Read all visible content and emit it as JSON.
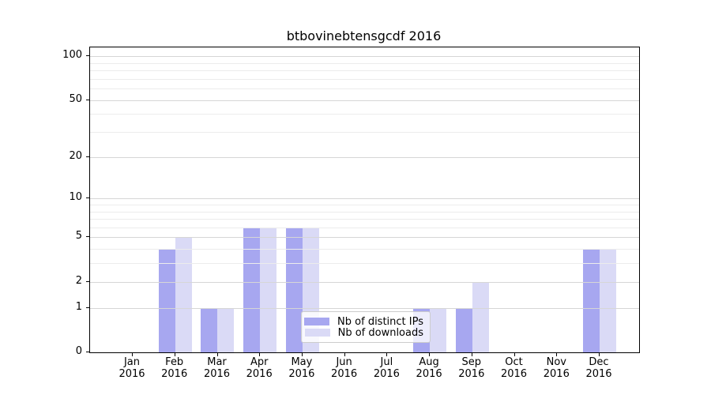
{
  "title": "btbovinebtensgcdf 2016",
  "colors": {
    "background": "#ffffff",
    "axis": "#000000",
    "major_grid": "#d6d6d6",
    "minor_grid": "#ececec",
    "legend_border": "#cccccc",
    "series_distinct_ips": "#a7a7f0",
    "series_downloads": "#dadaf6"
  },
  "legend": {
    "items": [
      {
        "label": "Nb of distinct IPs",
        "color": "#a7a7f0"
      },
      {
        "label": "Nb of downloads",
        "color": "#dadaf6"
      }
    ]
  },
  "chart_data": {
    "type": "bar",
    "title": "btbovinebtensgcdf 2016",
    "y_scale": "log1p",
    "grid": "on",
    "legend_position": "lower-center-inside",
    "categories": [
      "Jan",
      "Feb",
      "Mar",
      "Apr",
      "May",
      "Jun",
      "Jul",
      "Aug",
      "Sep",
      "Oct",
      "Nov",
      "Dec"
    ],
    "category_year": "2016",
    "series": [
      {
        "name": "Nb of distinct IPs",
        "color": "#a7a7f0",
        "values": [
          0,
          4,
          1,
          6,
          6,
          0,
          0,
          1,
          1,
          0,
          0,
          4
        ]
      },
      {
        "name": "Nb of downloads",
        "color": "#dadaf6",
        "values": [
          0,
          5,
          1,
          6,
          6,
          0,
          0,
          1,
          2,
          0,
          0,
          4
        ]
      }
    ],
    "y_major_ticks": [
      0,
      1,
      2,
      5,
      10,
      20,
      50,
      100
    ],
    "y_minor_gridlines": [
      3,
      4,
      6,
      7,
      8,
      9,
      30,
      40,
      60,
      70,
      80,
      90
    ],
    "ylim": [
      0,
      114
    ],
    "xlabel": "",
    "ylabel": ""
  }
}
